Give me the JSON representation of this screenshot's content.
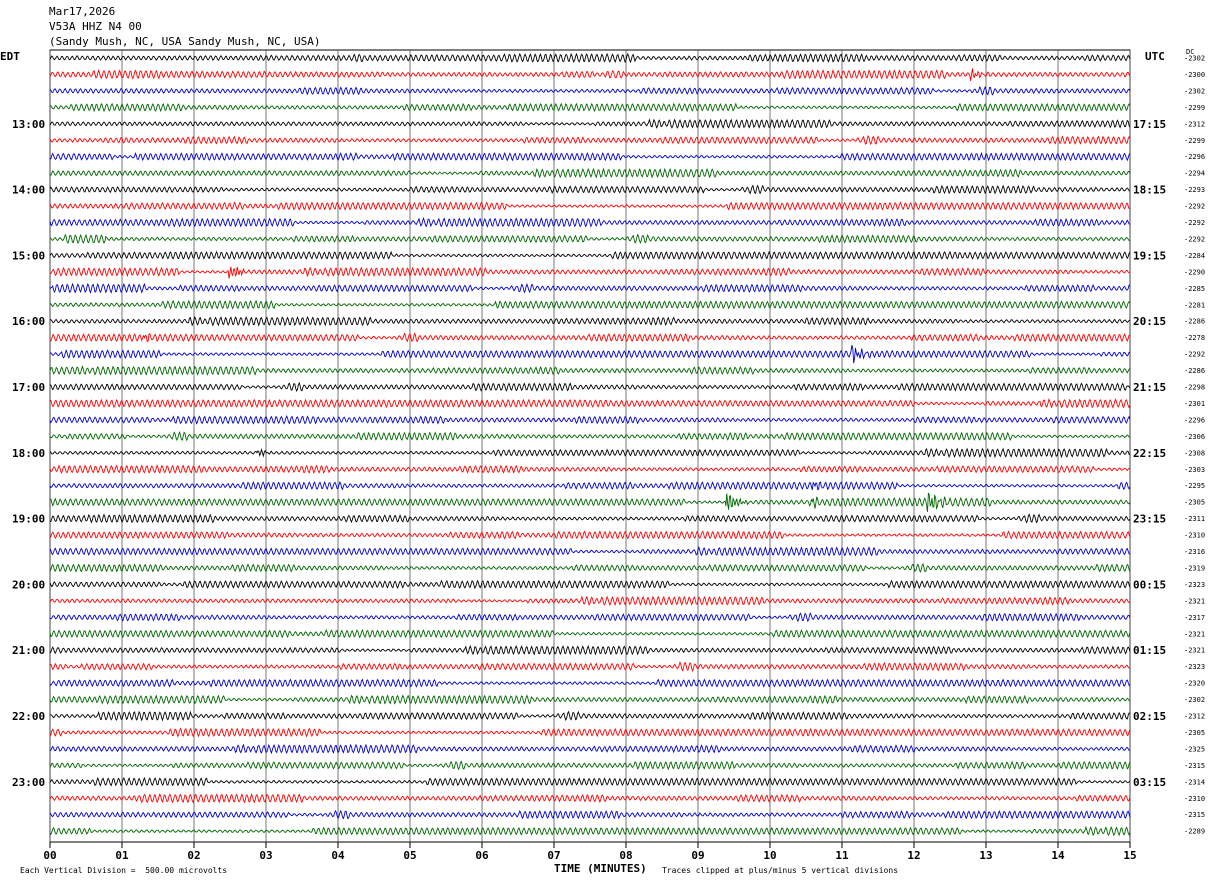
{
  "header": {
    "date": "Mar17,2026",
    "station": "V53A HHZ N4 00",
    "location": "(Sandy Mush, NC, USA Sandy Mush, NC, USA)"
  },
  "left_axis_label": "EDT",
  "right_axis_label": "UTC",
  "dc_label": "DC",
  "footer": {
    "scale_note": "Each Vertical Division =  500.00 microvolts",
    "clip_note": "Traces clipped at plus/minus 5 vertical divisions"
  },
  "chart_data": {
    "type": "line",
    "title": "",
    "xlabel": "TIME (MINUTES)",
    "xlim": [
      0,
      15
    ],
    "x_ticks": [
      "00",
      "01",
      "02",
      "03",
      "04",
      "05",
      "06",
      "07",
      "08",
      "09",
      "10",
      "11",
      "12",
      "13",
      "14",
      "15"
    ],
    "left_hour_labels": [
      "13:00",
      "14:00",
      "15:00",
      "16:00",
      "17:00",
      "18:00",
      "19:00",
      "20:00",
      "21:00",
      "22:00",
      "23:00"
    ],
    "right_hour_labels": [
      "17:15",
      "18:15",
      "19:15",
      "20:15",
      "21:15",
      "22:15",
      "23:15",
      "00:15",
      "01:15",
      "02:15",
      "03:15"
    ],
    "trace_colors": [
      "#000000",
      "#ff0000",
      "#0000cc",
      "#006600"
    ],
    "dc_offsets": [
      -2302,
      -2300,
      -2302,
      -2299,
      -2312,
      -2299,
      -2296,
      -2294,
      -2293,
      -2292,
      -2292,
      -2292,
      -2284,
      -2290,
      -2285,
      -2281,
      -2286,
      -2278,
      -2292,
      -2286,
      -2298,
      -2301,
      -2296,
      -2306,
      -2308,
      -2303,
      -2295,
      -2305,
      -2311,
      -2310,
      -2316,
      -2319,
      -2323,
      -2321,
      -2317,
      -2321,
      -2321,
      -2323,
      -2320,
      -2302,
      -2312,
      -2305,
      -2325,
      -2315,
      -2314,
      -2310,
      -2315,
      -2289
    ],
    "events": [
      {
        "row": 1,
        "minute": 12.8,
        "amp": 5,
        "dur": 0.25
      },
      {
        "row": 13,
        "minute": 2.5,
        "amp": 7,
        "dur": 0.2
      },
      {
        "row": 13,
        "minute": 2.6,
        "amp": 3,
        "dur": 0.15
      },
      {
        "row": 17,
        "minute": 1.3,
        "amp": 4,
        "dur": 0.2
      },
      {
        "row": 18,
        "minute": 11.15,
        "amp": 8,
        "dur": 0.25
      },
      {
        "row": 24,
        "minute": 2.9,
        "amp": 4,
        "dur": 0.2
      },
      {
        "row": 26,
        "minute": 10.6,
        "amp": 5,
        "dur": 0.2
      },
      {
        "row": 27,
        "minute": 9.4,
        "amp": 10,
        "dur": 0.3
      },
      {
        "row": 27,
        "minute": 12.2,
        "amp": 10,
        "dur": 0.3
      },
      {
        "row": 27,
        "minute": 10.6,
        "amp": 4,
        "dur": 0.2
      }
    ]
  }
}
